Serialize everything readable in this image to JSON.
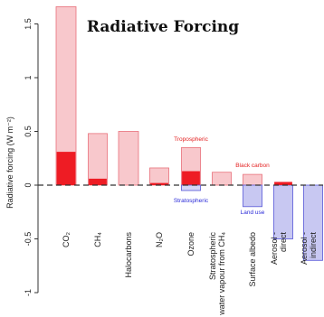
{
  "chart_data": {
    "type": "bar",
    "title": "Radiative Forcing",
    "xlabel": "",
    "ylabel": "Radiative forcing (W m⁻²)",
    "ylim": [
      -1,
      1.6
    ],
    "yticks": [
      -1,
      -0.5,
      0,
      0.5,
      1,
      1.5
    ],
    "ytick_labels": [
      "-1",
      "-0.5",
      "0",
      "0.5",
      "1",
      "1.5"
    ],
    "grid": false,
    "categories": [
      "CO₂",
      "CH₄",
      "Halocarbons",
      "N₂O",
      "Ozone",
      "Stratospheric water vapour from CH₄",
      "Surface albedo",
      "Aerosol - direct",
      "Aerosol - indirect"
    ],
    "category_labels": [
      [
        "CO₂"
      ],
      [
        "CH₄"
      ],
      [
        "Halocarbons"
      ],
      [
        "N₂O"
      ],
      [
        "Ozone"
      ],
      [
        "Stratospheric",
        "water vapour from CH₄"
      ],
      [
        "Surface albedo"
      ],
      [
        "Aerosol -",
        "direct"
      ],
      [
        "Aerosol -",
        "indirect"
      ]
    ],
    "series": [
      {
        "values": [
          1.66,
          0.48,
          0.5,
          0.16,
          0.35,
          0.12,
          0.1,
          -0.5,
          -0.7
        ]
      },
      {
        "values": [
          0.31,
          0.06,
          0,
          0.02,
          0.13,
          0,
          -0.1,
          0.03,
          0
        ]
      }
    ],
    "extra_bars": [
      {
        "category": "Ozone",
        "value": -0.05
      },
      {
        "category": "Surface albedo",
        "value": -0.2
      }
    ],
    "annotations": [
      "Tropospheric",
      "Stratospheric",
      "Black carbon",
      "Land use"
    ],
    "colors": {
      "positive_fill": "#f8c8cc",
      "positive_stroke": "#e8707a",
      "highlight": "#ee1c24",
      "negative_fill": "#c8c8f2",
      "negative_stroke": "#5656d8",
      "negative_highlight": "#1f1fe0",
      "annotation_red": "#e32020",
      "annotation_blue": "#2a2ad8"
    }
  }
}
